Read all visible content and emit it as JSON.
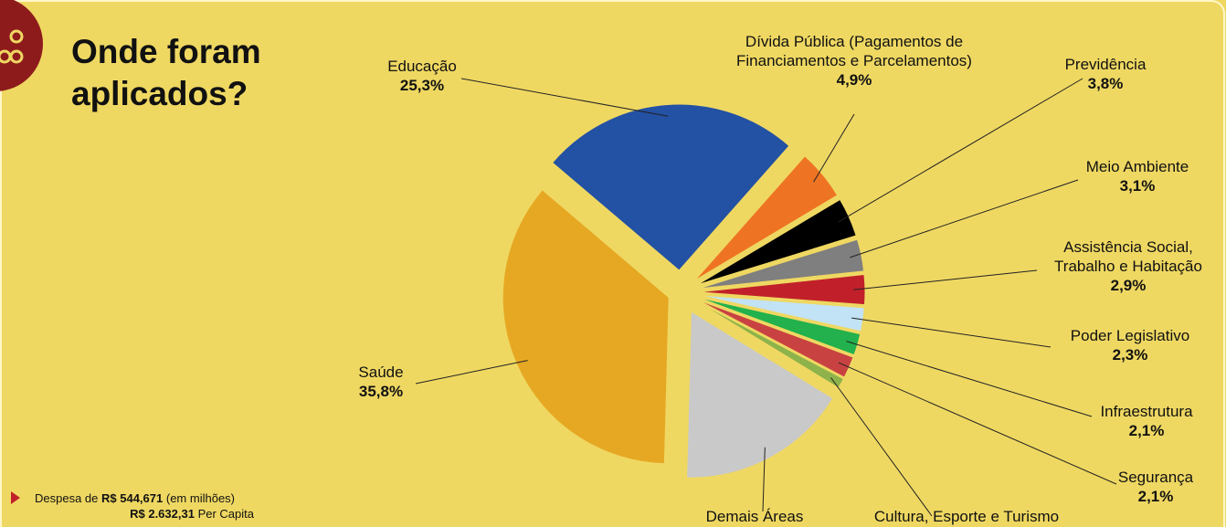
{
  "chart_data": {
    "type": "pie",
    "title": "Onde foram aplicados?",
    "categories": [
      "Educação",
      "Dívida Pública (Pagamentos de Financiamentos e Parcelamentos)",
      "Previdência",
      "Meio Ambiente",
      "Assistência Social, Trabalho e Habitação",
      "Poder Legislativo",
      "Infraestrutura",
      "Segurança",
      "Cultura, Esporte e Turismo",
      "Demais Áreas",
      "Saúde"
    ],
    "values": [
      25.3,
      4.9,
      3.8,
      3.1,
      2.9,
      2.3,
      2.1,
      2.1,
      1.0,
      16.7,
      35.8
    ],
    "value_labels": [
      "25,3%",
      "4,9%",
      "3,8%",
      "3,1%",
      "2,9%",
      "2,3%",
      "2,1%",
      "2,1%",
      null,
      null,
      "35,8%"
    ],
    "colors": [
      "#2351a3",
      "#ee7423",
      "#000000",
      "#7f7f7f",
      "#c1202a",
      "#c2e2f5",
      "#22b14c",
      "#c94242",
      "#8db34a",
      "#c9c9c9",
      "#e6a823"
    ],
    "footnote": {
      "prefix": "Despesa de",
      "amount": "R$ 544,671",
      "suffix": "(em milhões)",
      "per_capita_amount": "R$ 2.632,31",
      "per_capita_suffix": "Per Capita"
    }
  }
}
